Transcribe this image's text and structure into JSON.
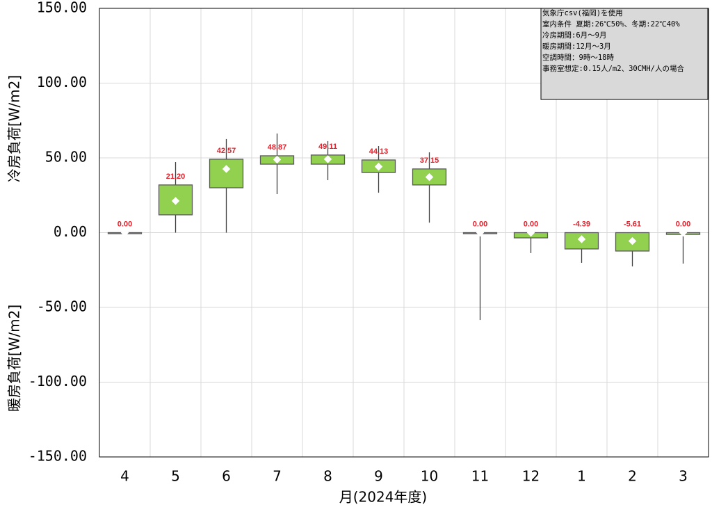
{
  "chart_data": {
    "type": "box",
    "y_label_cooling": "冷房負荷[W/m2]",
    "y_label_heating": "暖房負荷[W/m2]",
    "x_label": "月(2024年度)",
    "annotation": [
      "気象庁csv(福岡)を使用",
      "室内条件 夏期:26℃50%、冬期:22℃40%",
      "冷房期間:6月～9月",
      "暖房期間:12月～3月",
      "空調時間：9時～18時",
      "事務室想定:0.15人/m2、30CMH/人の場合"
    ],
    "categories": [
      "4",
      "5",
      "6",
      "7",
      "8",
      "9",
      "10",
      "11",
      "12",
      "1",
      "2",
      "3"
    ],
    "min": [
      0,
      0,
      0,
      25.8,
      35.1,
      26.7,
      6.7,
      -58.4,
      -13.7,
      -20.2,
      -22.6,
      -20.7
    ],
    "q1": [
      0,
      11.9,
      30.0,
      45.8,
      45.8,
      40.2,
      31.9,
      0,
      -3.5,
      -10.9,
      -12.3,
      -1.2
    ],
    "q3": [
      0,
      31.9,
      49.1,
      51.4,
      51.9,
      48.6,
      42.6,
      0,
      0,
      0,
      0,
      0
    ],
    "max": [
      0,
      47.2,
      62.6,
      66.3,
      61.2,
      57.9,
      53.7,
      0,
      0,
      0,
      0,
      0
    ],
    "values": [
      0,
      21.2,
      42.57,
      48.87,
      49.11,
      44.13,
      37.15,
      0,
      0,
      -4.39,
      -5.61,
      0
    ],
    "value_labels": [
      "0.00",
      "21.20",
      "42.57",
      "48.87",
      "49.11",
      "44.13",
      "37.15",
      "0.00",
      "0.00",
      "-4.39",
      "-5.61",
      "0.00"
    ],
    "color": "#92d050",
    "ylim": [
      -150,
      150
    ],
    "yticks": [
      {
        "value": -150,
        "label": "-150.00"
      },
      {
        "value": -100,
        "label": "-100.00"
      },
      {
        "value": -50,
        "label": "-50.00"
      },
      {
        "value": 0,
        "label": "0.00"
      },
      {
        "value": 50,
        "label": "50.00"
      },
      {
        "value": 100,
        "label": "100.00"
      },
      {
        "value": 150,
        "label": "150.00"
      }
    ],
    "grid": true
  }
}
